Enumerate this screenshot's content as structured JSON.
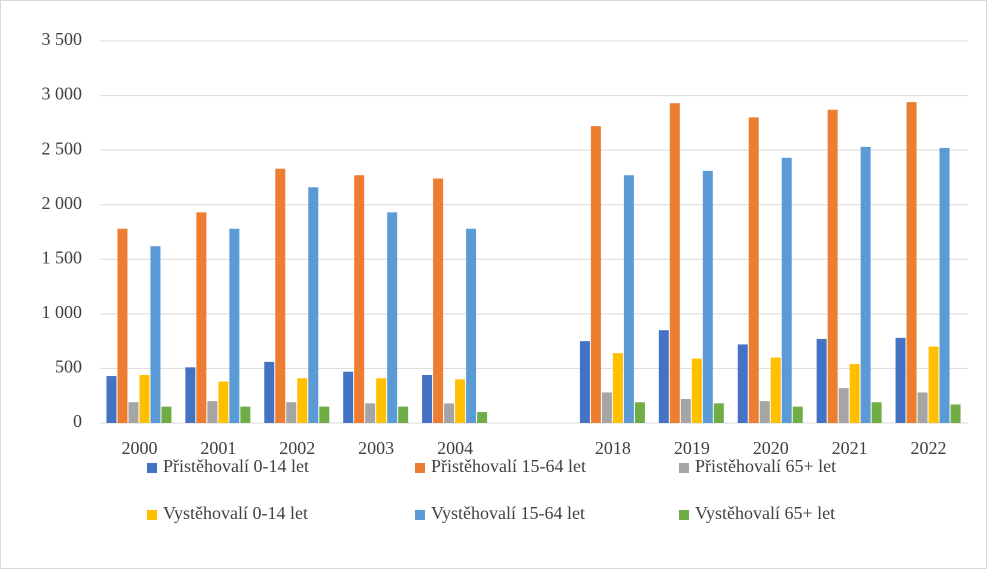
{
  "chart_data": {
    "type": "bar",
    "categories": [
      "2000",
      "2001",
      "2002",
      "2003",
      "2004",
      null,
      "2018",
      "2019",
      "2020",
      "2021",
      "2022"
    ],
    "series": [
      {
        "name": "Přistěhovalí 0-14 let",
        "color": "#4472c4",
        "values": [
          430,
          510,
          560,
          470,
          440,
          null,
          750,
          850,
          720,
          770,
          780
        ]
      },
      {
        "name": "Přistěhovalí 15-64 let",
        "color": "#ed7d31",
        "values": [
          1780,
          1930,
          2330,
          2270,
          2240,
          null,
          2720,
          2930,
          2800,
          2870,
          2940
        ]
      },
      {
        "name": "Přistěhovalí 65+ let",
        "color": "#a5a5a5",
        "values": [
          190,
          200,
          190,
          180,
          180,
          null,
          280,
          220,
          200,
          320,
          280
        ]
      },
      {
        "name": "Vystěhovalí 0-14 let",
        "color": "#ffc000",
        "values": [
          440,
          380,
          410,
          410,
          400,
          null,
          640,
          590,
          600,
          540,
          700
        ]
      },
      {
        "name": "Vystěhovalí 15-64 let",
        "color": "#5b9bd5",
        "values": [
          1620,
          1780,
          2160,
          1930,
          1780,
          null,
          2270,
          2310,
          2430,
          2530,
          2520
        ]
      },
      {
        "name": "Vystěhovalí 65+ let",
        "color": "#70ad47",
        "values": [
          150,
          150,
          150,
          150,
          100,
          null,
          190,
          180,
          150,
          190,
          170
        ]
      }
    ],
    "ylim": [
      0,
      3500
    ],
    "yticks": [
      0,
      500,
      {
        "value": 1000,
        "label": "1 000"
      },
      {
        "value": 1500,
        "label": "1 500"
      },
      {
        "value": 2000,
        "label": "2 000"
      },
      {
        "value": 2500,
        "label": "2 500"
      },
      {
        "value": 3000,
        "label": "3 000"
      },
      {
        "value": 3500,
        "label": "3 500"
      }
    ],
    "grid": true,
    "legend": "bottom"
  }
}
